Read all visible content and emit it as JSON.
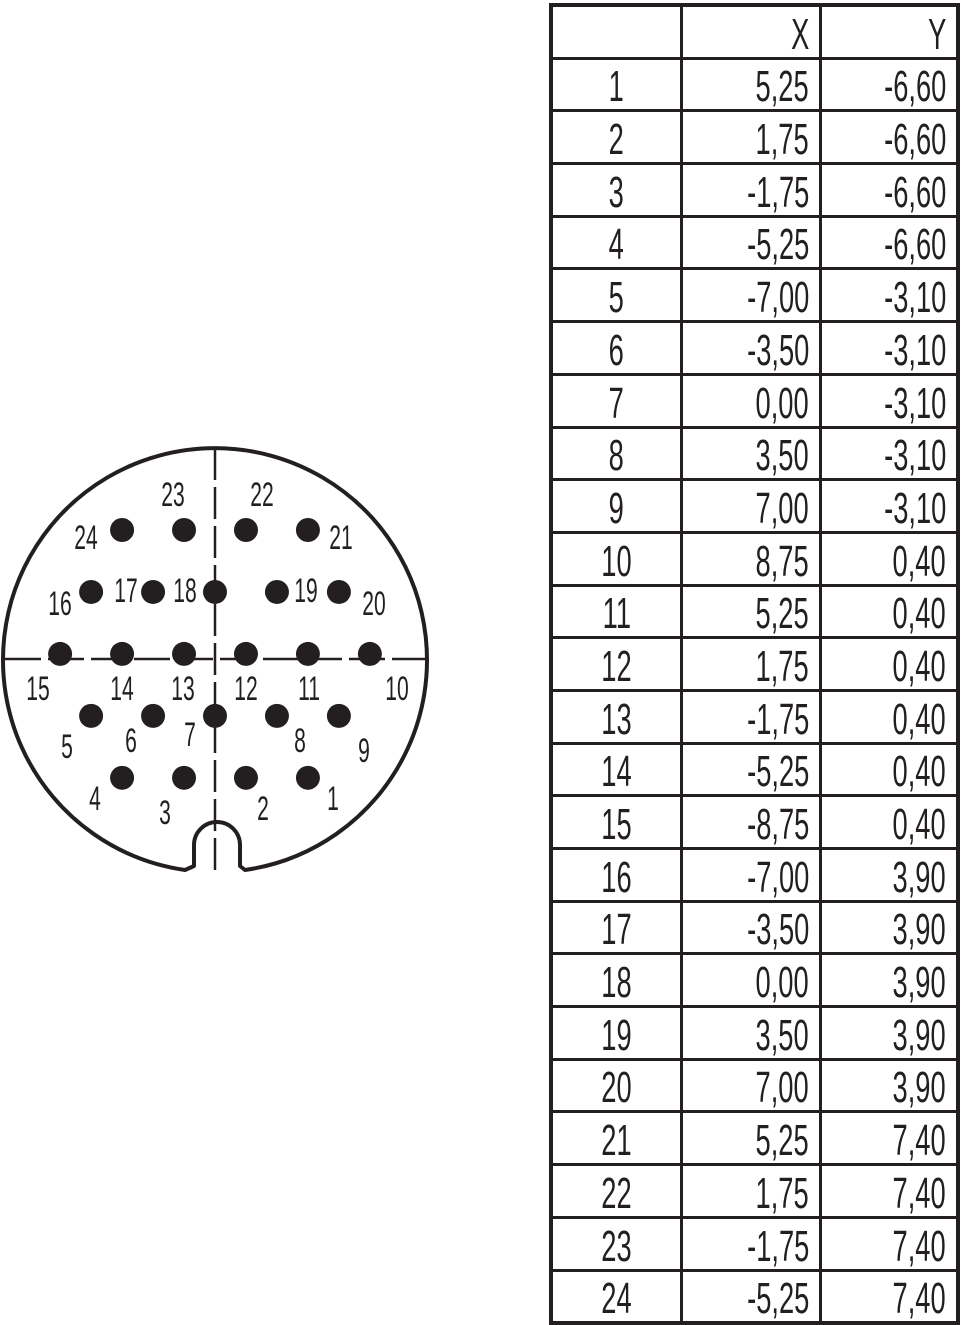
{
  "colors": {
    "ink": "#231f20",
    "background": "#ffffff"
  },
  "table": {
    "headers": [
      "",
      "X",
      "Y"
    ],
    "rows": [
      [
        "1",
        "5,25",
        "-6,60"
      ],
      [
        "2",
        "1,75",
        "-6,60"
      ],
      [
        "3",
        "-1,75",
        "-6,60"
      ],
      [
        "4",
        "-5,25",
        "-6,60"
      ],
      [
        "5",
        "-7,00",
        "-3,10"
      ],
      [
        "6",
        "-3,50",
        "-3,10"
      ],
      [
        "7",
        "0,00",
        "-3,10"
      ],
      [
        "8",
        "3,50",
        "-3,10"
      ],
      [
        "9",
        "7,00",
        "-3,10"
      ],
      [
        "10",
        "8,75",
        "0,40"
      ],
      [
        "11",
        "5,25",
        "0,40"
      ],
      [
        "12",
        "1,75",
        "0,40"
      ],
      [
        "13",
        "-1,75",
        "0,40"
      ],
      [
        "14",
        "-5,25",
        "0,40"
      ],
      [
        "15",
        "-8,75",
        "0,40"
      ],
      [
        "16",
        "-7,00",
        "3,90"
      ],
      [
        "17",
        "-3,50",
        "3,90"
      ],
      [
        "18",
        "0,00",
        "3,90"
      ],
      [
        "19",
        "3,50",
        "3,90"
      ],
      [
        "20",
        "7,00",
        "3,90"
      ],
      [
        "21",
        "5,25",
        "7,40"
      ],
      [
        "22",
        "1,75",
        "7,40"
      ],
      [
        "23",
        "-1,75",
        "7,40"
      ],
      [
        "24",
        "-5,25",
        "7,40"
      ]
    ]
  }
}
